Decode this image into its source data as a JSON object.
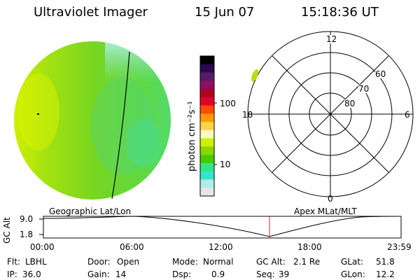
{
  "header": {
    "title": "Ultraviolet Imager",
    "date": "15 Jun 07",
    "time": "15:18:36 UT"
  },
  "colorbar": {
    "unit_label": "photon cm⁻²s⁻¹",
    "ticks": [
      "100",
      "10"
    ],
    "colors": [
      "#000000",
      "#2a0a4a",
      "#5a1a6a",
      "#8a1060",
      "#b00020",
      "#e0002a",
      "#ff4a00",
      "#ff9900",
      "#ffd24a",
      "#fff8c0",
      "#ccf000",
      "#8ad600",
      "#44cc00",
      "#33e680",
      "#33e6cc",
      "#b0ecec",
      "#e6e6e6"
    ]
  },
  "polar_plot": {
    "mlt_labels": [
      "12",
      "18",
      "6",
      "0"
    ],
    "mlat_labels": [
      "60",
      "70",
      "80"
    ]
  },
  "timeline": {
    "label_left": "Geographic Lat/Lon",
    "label_right": "Apex MLat/MLT",
    "y_axis_label": "GC Alt",
    "y_ticks": [
      "9.0",
      "1.8"
    ],
    "x_ticks": [
      "00:00",
      "06:00",
      "12:00",
      "18:00",
      "23:59"
    ],
    "current_time_marker_color": "#c03020"
  },
  "info": {
    "flt_label": "Flt:",
    "flt_value": "LBHL",
    "ip_label": "IP:",
    "ip_value": "36.0",
    "door_label": "Door:",
    "door_value": "Open",
    "gain_label": "Gain:",
    "gain_value": "14",
    "mode_label": "Mode:",
    "mode_value": "Normal",
    "dsp_label": "Dsp:",
    "dsp_value": "0.9",
    "gcalt_label": "GC Alt:",
    "gcalt_value": "2.1 Re",
    "seq_label": "Seq:",
    "seq_value": "39",
    "glat_label": "GLat:",
    "glat_value": "51.8",
    "glon_label": "GLon:",
    "glon_value": "12.2"
  }
}
